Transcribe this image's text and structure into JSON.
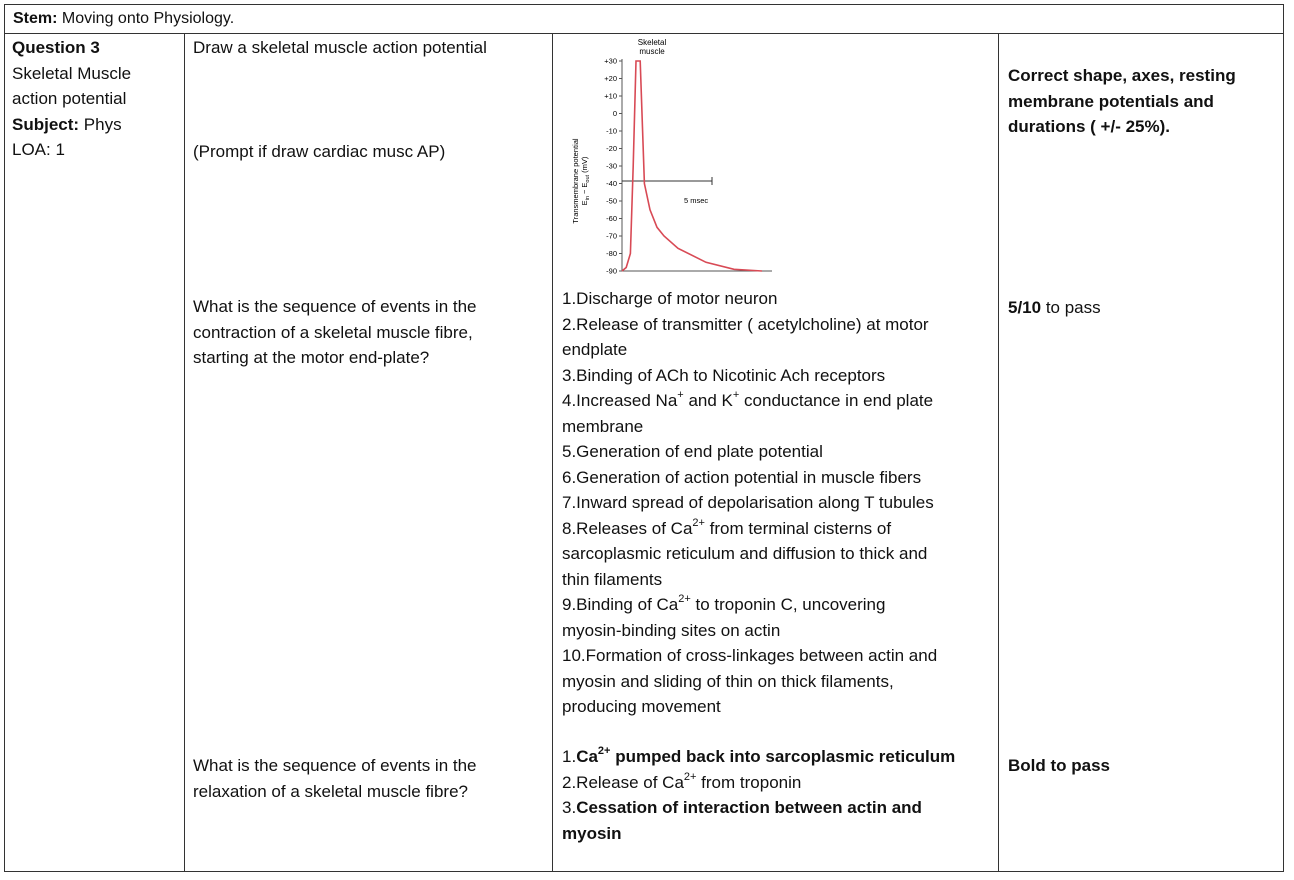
{
  "stem": {
    "label": "Stem:",
    "text": " Moving onto Physiology."
  },
  "left": {
    "q_title": "Question 3",
    "q_name_1": "Skeletal Muscle",
    "q_name_2": "action potential",
    "subject_label": "Subject:",
    "subject_value": " Phys",
    "loa": "LOA: 1"
  },
  "row1": {
    "question": "Draw a skeletal muscle action potential",
    "prompt": "(Prompt if draw cardiac musc AP)",
    "marking": "Correct shape, axes, resting membrane potentials and durations ( +/- 25%)."
  },
  "chart_data": {
    "type": "line",
    "title": "Skeletal muscle",
    "ylabel": "Transmembrane potential E_in − E_out (mV)",
    "yticks": [
      "+30",
      "+20",
      "+10",
      "0",
      "-10",
      "-20",
      "-30",
      "-40",
      "-50",
      "-60",
      "-70",
      "-80",
      "-90"
    ],
    "ylim": [
      -90,
      30
    ],
    "annotation": "5 msec",
    "x": [
      0,
      0.3,
      0.6,
      0.8,
      1.0,
      1.3,
      1.6,
      2.0,
      2.5,
      3.0,
      4.0,
      6.0,
      8.0,
      10.0
    ],
    "values": [
      -90,
      -88,
      -80,
      -30,
      30,
      30,
      -40,
      -55,
      -65,
      -70,
      -77,
      -85,
      -89,
      -90
    ]
  },
  "row2": {
    "question_1": "What is the sequence of events in the",
    "question_2": "contraction of a skeletal muscle fibre,",
    "question_3": "starting at the motor end-plate?",
    "events": [
      "1.Discharge of motor neuron",
      "2.Release of transmitter ( acetylcholine) at motor",
      "endplate",
      "3.Binding of ACh to Nicotinic Ach receptors",
      "membrane",
      "5.Generation of end plate potential",
      "6.Generation of action potential in muscle fibers",
      "7.Inward spread of depolarisation along T tubules",
      "sarcoplasmic reticulum and diffusion to thick and",
      "thin filaments",
      "myosin-binding sites on actin",
      "10.Formation of cross-linkages between actin and",
      "myosin and sliding of thin on thick filaments,",
      "producing movement"
    ],
    "ev4_a": "4.Increased Na",
    "ev4_b": " and K",
    "ev4_c": " conductance in end plate",
    "plus": "+",
    "ca_sup": "2+",
    "ev8_a": "8.Releases of Ca",
    "ev8_b": " from terminal cisterns of",
    "ev9_a": "9.Binding of Ca",
    "ev9_b": " to troponin C, uncovering",
    "marking_bold": "5/10",
    "marking_rest": " to pass"
  },
  "row3": {
    "question_1": "What is the sequence of events in the",
    "question_2": "relaxation of a skeletal muscle fibre?",
    "a1_num": "1.",
    "a1_ca": "Ca",
    "a1_rest": " pumped back into sarcoplasmic reticulum",
    "a2_a": "2.Release of Ca",
    "a2_b": " from troponin",
    "a3_num": "3.",
    "a3_bold_1": "Cessation of interaction between actin and",
    "a3_bold_2": "myosin",
    "marking": "Bold to pass"
  }
}
